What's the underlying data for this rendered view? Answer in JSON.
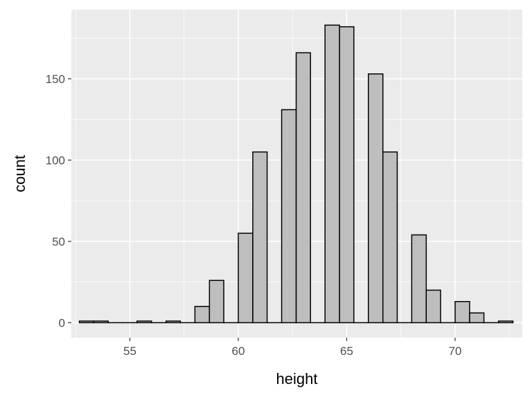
{
  "chart_data": {
    "type": "bar",
    "subtype": "histogram",
    "title": "",
    "xlabel": "height",
    "ylabel": "count",
    "xlim": [
      52.3,
      73.1
    ],
    "ylim": [
      -9.2,
      192.5
    ],
    "xticks": [
      55,
      60,
      65,
      70
    ],
    "yticks": [
      0,
      50,
      100,
      150
    ],
    "x_tick_labels": [
      "55",
      "60",
      "65",
      "70"
    ],
    "y_tick_labels": [
      "0",
      "50",
      "100",
      "150"
    ],
    "grid": true,
    "bin_width": 0.667,
    "bins": [
      {
        "start": 52.67,
        "end": 53.33,
        "count": 1
      },
      {
        "start": 53.33,
        "end": 54.0,
        "count": 1
      },
      {
        "start": 54.0,
        "end": 54.67,
        "count": 0
      },
      {
        "start": 54.67,
        "end": 55.33,
        "count": 0
      },
      {
        "start": 55.33,
        "end": 56.0,
        "count": 1
      },
      {
        "start": 56.0,
        "end": 56.67,
        "count": 0
      },
      {
        "start": 56.67,
        "end": 57.33,
        "count": 1
      },
      {
        "start": 57.33,
        "end": 58.0,
        "count": 0
      },
      {
        "start": 58.0,
        "end": 58.67,
        "count": 10
      },
      {
        "start": 58.67,
        "end": 59.33,
        "count": 26
      },
      {
        "start": 59.33,
        "end": 60.0,
        "count": 0
      },
      {
        "start": 60.0,
        "end": 60.67,
        "count": 55
      },
      {
        "start": 60.67,
        "end": 61.33,
        "count": 105
      },
      {
        "start": 61.33,
        "end": 62.0,
        "count": 0
      },
      {
        "start": 62.0,
        "end": 62.67,
        "count": 131
      },
      {
        "start": 62.67,
        "end": 63.33,
        "count": 166
      },
      {
        "start": 63.33,
        "end": 64.0,
        "count": 0
      },
      {
        "start": 64.0,
        "end": 64.67,
        "count": 183
      },
      {
        "start": 64.67,
        "end": 65.33,
        "count": 182
      },
      {
        "start": 65.33,
        "end": 66.0,
        "count": 0
      },
      {
        "start": 66.0,
        "end": 66.67,
        "count": 153
      },
      {
        "start": 66.67,
        "end": 67.33,
        "count": 105
      },
      {
        "start": 67.33,
        "end": 68.0,
        "count": 0
      },
      {
        "start": 68.0,
        "end": 68.67,
        "count": 54
      },
      {
        "start": 68.67,
        "end": 69.33,
        "count": 20
      },
      {
        "start": 69.33,
        "end": 70.0,
        "count": 0
      },
      {
        "start": 70.0,
        "end": 70.67,
        "count": 13
      },
      {
        "start": 70.67,
        "end": 71.33,
        "count": 6
      },
      {
        "start": 71.33,
        "end": 72.0,
        "count": 0
      },
      {
        "start": 72.0,
        "end": 72.67,
        "count": 1
      }
    ],
    "colors": {
      "panel_background": "#ebebeb",
      "grid_major": "#ffffff",
      "bar_fill": "#bebebe",
      "bar_outline": "#000000",
      "tick_label": "#4d4d4d",
      "axis_title": "#000000"
    }
  }
}
